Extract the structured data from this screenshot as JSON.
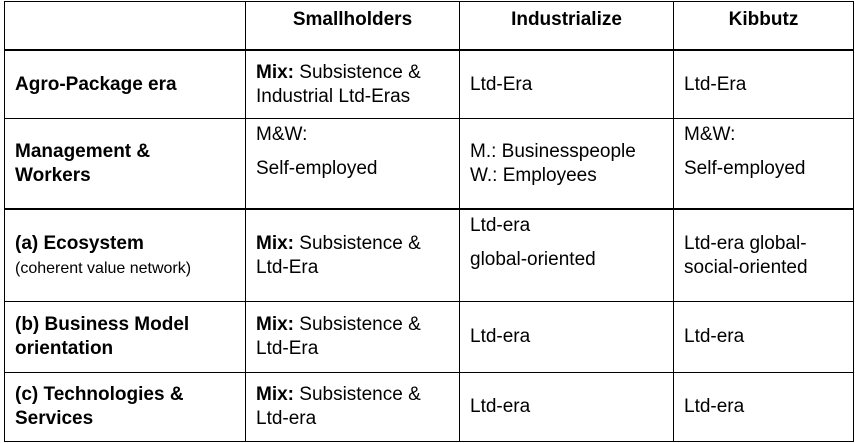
{
  "header": {
    "c0": "",
    "c1": "Smallholders",
    "c2": "Industrialize",
    "c3": "Kibbutz"
  },
  "rows": [
    {
      "head": "Agro-Package era",
      "sub": "",
      "small": {
        "bold": "Mix:",
        "text": " Subsistence &",
        "line2": "Industrial Ltd-Eras"
      },
      "ind": [
        "Ltd-Era"
      ],
      "kib": [
        "Ltd-Era"
      ]
    },
    {
      "head_l1": "Management &",
      "head_l2": "Workers",
      "small": [
        "M&W:",
        "Self-employed"
      ],
      "ind": [
        "M.: Businesspeople",
        "W.: Employees"
      ],
      "kib": [
        "M&W:",
        "Self-employed"
      ]
    },
    {
      "head": "(a) Ecosystem",
      "sub": "(coherent value network)",
      "small": {
        "bold": "Mix:",
        "text": " Subsistence &",
        "line2": "Ltd-Era"
      },
      "ind": [
        "Ltd-era",
        "global-oriented"
      ],
      "kib": [
        "Ltd-era global-",
        "social-oriented"
      ]
    },
    {
      "head_l1": "(b) Business Model",
      "head_l2": "orientation",
      "small": {
        "bold": "Mix:",
        "text": " Subsistence &",
        "line2": "Ltd-Era"
      },
      "ind": [
        "Ltd-era"
      ],
      "kib": [
        "Ltd-era"
      ]
    },
    {
      "head_l1": "(c) Technologies &",
      "head_l2": "Services",
      "small": {
        "bold": "Mix:",
        "text": " Subsistence &",
        "line2": "Ltd-era"
      },
      "ind": [
        "Ltd-era"
      ],
      "kib": [
        "Ltd-era"
      ]
    }
  ]
}
